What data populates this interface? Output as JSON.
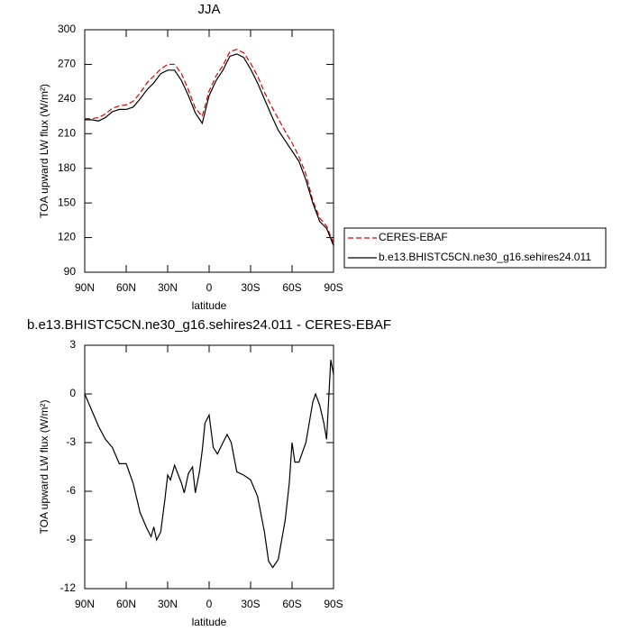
{
  "chart_data": [
    {
      "type": "line",
      "title": "JJA",
      "xlabel": "latitude",
      "ylabel": "TOA upward LW flux (W/m²)",
      "x": [
        90,
        85,
        80,
        75,
        70,
        65,
        60,
        55,
        50,
        45,
        40,
        35,
        30,
        25,
        20,
        15,
        10,
        5,
        0,
        -5,
        -10,
        -15,
        -20,
        -25,
        -30,
        -35,
        -40,
        -45,
        -50,
        -55,
        -60,
        -65,
        -70,
        -75,
        -80,
        -85,
        -90
      ],
      "xlim": [
        90,
        -90
      ],
      "xticks": [
        {
          "value": 90,
          "label": "90N"
        },
        {
          "value": 60,
          "label": "60N"
        },
        {
          "value": 30,
          "label": "30N"
        },
        0,
        {
          "value": -30,
          "label": "30S"
        },
        {
          "value": -60,
          "label": "60S"
        },
        {
          "value": -90,
          "label": "90S"
        }
      ],
      "ylim": [
        90,
        300
      ],
      "yticks": [
        90,
        120,
        150,
        180,
        210,
        240,
        270,
        300
      ],
      "legend": "right",
      "series": [
        {
          "name": "CERES-EBAF",
          "color": "#e00000",
          "style": "dashed",
          "values": [
            223,
            223,
            224,
            227,
            232,
            234,
            235,
            238,
            245,
            254,
            260,
            266,
            270,
            270,
            262,
            248,
            232,
            225,
            247,
            260,
            269,
            281,
            283,
            280,
            271,
            260,
            246,
            234,
            223,
            212,
            202,
            190,
            175,
            152,
            137,
            130,
            115
          ]
        },
        {
          "name": "b.e13.BHISTC5CN.ne30_g16.sehires24.011",
          "color": "#000000",
          "style": "solid",
          "values": [
            222,
            222,
            221,
            224,
            229,
            231,
            231,
            233,
            240,
            248,
            254,
            262,
            265,
            265,
            256,
            243,
            228,
            219,
            243,
            256,
            265,
            277,
            279,
            276,
            266,
            254,
            240,
            226,
            213,
            204,
            195,
            186,
            170,
            150,
            134,
            128,
            113
          ]
        }
      ]
    },
    {
      "type": "line",
      "title": "b.e13.BHISTC5CN.ne30_g16.sehires24.011 - CERES-EBAF",
      "xlabel": "latitude",
      "ylabel": "TOA upward LW flux (W/m²)",
      "x": [
        90,
        85,
        80,
        75,
        70,
        65,
        60,
        55,
        50,
        45,
        42,
        40,
        38,
        35,
        32,
        30,
        28,
        25,
        20,
        18,
        15,
        12,
        10,
        7,
        5,
        3,
        0,
        -3,
        -6,
        -10,
        -13,
        -16,
        -20,
        -25,
        -30,
        -35,
        -40,
        -43,
        -46,
        -50,
        -55,
        -58,
        -60,
        -62,
        -65,
        -70,
        -75,
        -77,
        -80,
        -83,
        -85,
        -88,
        -90
      ],
      "xlim": [
        90,
        -90
      ],
      "xticks": [
        {
          "value": 90,
          "label": "90N"
        },
        {
          "value": 60,
          "label": "60N"
        },
        {
          "value": 30,
          "label": "30N"
        },
        0,
        {
          "value": -30,
          "label": "30S"
        },
        {
          "value": -60,
          "label": "60S"
        },
        {
          "value": -90,
          "label": "90S"
        }
      ],
      "ylim": [
        -12,
        3
      ],
      "yticks": [
        -12,
        -9,
        -6,
        -3,
        0,
        3
      ],
      "series": [
        {
          "color": "#000000",
          "style": "solid",
          "values": [
            0,
            -1,
            -2,
            -2.8,
            -3.3,
            -4.3,
            -4.3,
            -5.5,
            -7.3,
            -8.3,
            -8.8,
            -8.2,
            -9.0,
            -8.5,
            -6.5,
            -5,
            -5.3,
            -4.4,
            -5.5,
            -6.1,
            -4.9,
            -4.5,
            -6.1,
            -4.8,
            -3.5,
            -1.8,
            -1.3,
            -3.3,
            -3.7,
            -3.0,
            -2.5,
            -3.0,
            -4.8,
            -5.0,
            -5.3,
            -6.3,
            -8.5,
            -10.3,
            -10.7,
            -10.2,
            -7.8,
            -5.5,
            -3.0,
            -4.2,
            -4.2,
            -3.0,
            -0.5,
            0,
            -0.7,
            -1.8,
            -2.8,
            2.1,
            1.2
          ]
        }
      ]
    }
  ]
}
